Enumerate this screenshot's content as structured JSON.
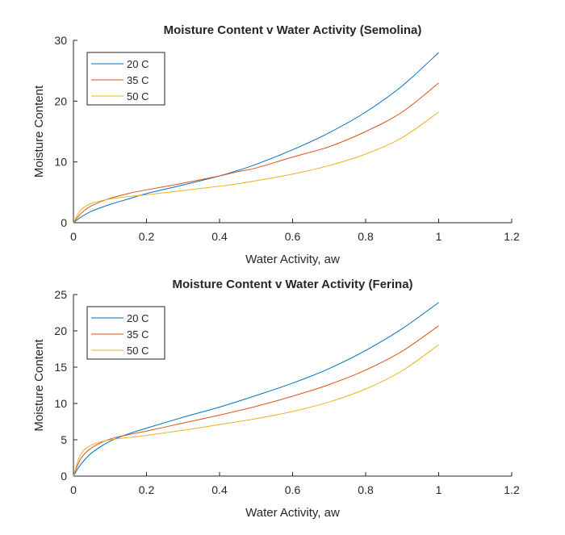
{
  "chart_data": [
    {
      "type": "line",
      "title": "Moisture Content v Water Activity (Semolina)",
      "xlabel": "Water Activity, aw",
      "ylabel": "Moisture Content",
      "xlim": [
        0,
        1.2
      ],
      "ylim": [
        0,
        30
      ],
      "xticks": [
        0,
        0.2,
        0.4,
        0.6,
        0.8,
        1,
        1.2
      ],
      "xtick_labels": [
        "0",
        "0.2",
        "0.4",
        "0.6",
        "0.8",
        "1",
        "1.2"
      ],
      "yticks": [
        0,
        10,
        20,
        30
      ],
      "ytick_labels": [
        "0",
        "10",
        "20",
        "30"
      ],
      "grid": false,
      "legend_position": "top-left",
      "x": [
        0,
        0.02,
        0.05,
        0.1,
        0.15,
        0.2,
        0.3,
        0.4,
        0.45,
        0.5,
        0.6,
        0.7,
        0.8,
        0.9,
        1.0
      ],
      "series": [
        {
          "name": "20 C",
          "color": "#0072BD",
          "values": [
            0,
            0.9,
            1.9,
            3.0,
            3.9,
            4.8,
            6.2,
            7.7,
            8.6,
            9.6,
            12.0,
            14.8,
            18.2,
            22.5,
            28.0
          ]
        },
        {
          "name": "35 C",
          "color": "#D95319",
          "values": [
            0,
            1.5,
            2.8,
            4.0,
            4.8,
            5.4,
            6.5,
            7.7,
            8.4,
            9.0,
            10.8,
            12.5,
            15.0,
            18.2,
            23.0
          ]
        },
        {
          "name": "50 C",
          "color": "#EDB120",
          "values": [
            0,
            2.1,
            3.2,
            3.9,
            4.3,
            4.6,
            5.3,
            6.0,
            6.4,
            6.9,
            8.0,
            9.4,
            11.3,
            14.0,
            18.2
          ]
        }
      ]
    },
    {
      "type": "line",
      "title": "Moisture Content v Water Activity (Ferina)",
      "xlabel": "Water Activity, aw",
      "ylabel": "Moisture Content",
      "xlim": [
        0,
        1.2
      ],
      "ylim": [
        0,
        25
      ],
      "xticks": [
        0,
        0.2,
        0.4,
        0.6,
        0.8,
        1,
        1.2
      ],
      "xtick_labels": [
        "0",
        "0.2",
        "0.4",
        "0.6",
        "0.8",
        "1",
        "1.2"
      ],
      "yticks": [
        0,
        5,
        10,
        15,
        20,
        25
      ],
      "ytick_labels": [
        "0",
        "5",
        "10",
        "15",
        "20",
        "25"
      ],
      "grid": false,
      "legend_position": "top-left",
      "x": [
        0,
        0.02,
        0.05,
        0.1,
        0.15,
        0.2,
        0.3,
        0.4,
        0.5,
        0.6,
        0.7,
        0.8,
        0.9,
        1.0
      ],
      "series": [
        {
          "name": "20 C",
          "color": "#0072BD",
          "values": [
            0,
            1.6,
            3.2,
            4.8,
            5.8,
            6.6,
            8.1,
            9.5,
            11.1,
            12.8,
            14.8,
            17.3,
            20.3,
            23.9
          ]
        },
        {
          "name": "35 C",
          "color": "#D95319",
          "values": [
            0,
            2.4,
            3.9,
            5.1,
            5.7,
            6.2,
            7.3,
            8.4,
            9.6,
            11.0,
            12.6,
            14.6,
            17.2,
            20.7
          ]
        },
        {
          "name": "50 C",
          "color": "#EDB120",
          "values": [
            0,
            3.0,
            4.3,
            5.0,
            5.3,
            5.6,
            6.3,
            7.1,
            7.9,
            8.9,
            10.2,
            12.0,
            14.5,
            18.1
          ]
        }
      ]
    }
  ]
}
